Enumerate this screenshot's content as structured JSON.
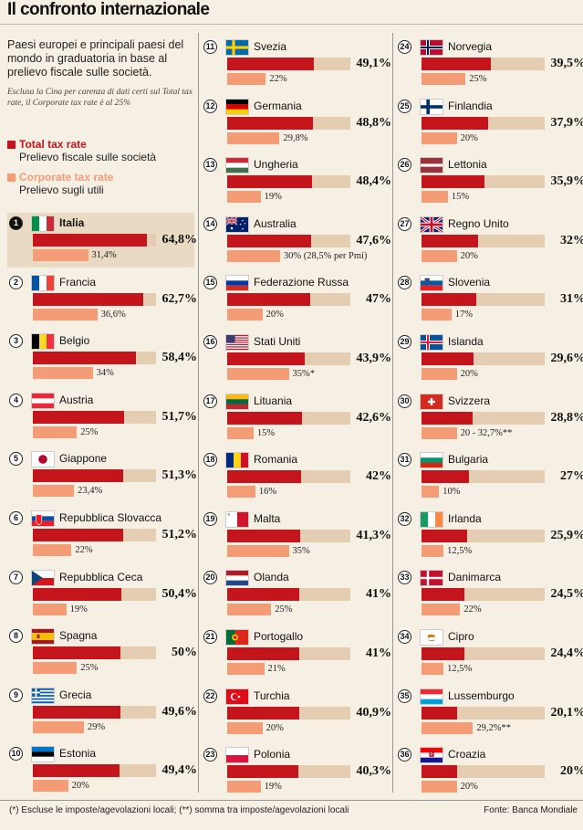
{
  "title": "Il confronto internazionale",
  "intro": "Paesi europei e principali paesi del mondo in graduatoria in base al prelievo fiscale sulle società.",
  "note": "Esclusa la Cina per carenza di dati certi sul Total tax rate, il Corporate tax rate è al 25%",
  "legend": {
    "total_label": "Total tax rate",
    "total_desc": "Prelievo fiscale sulle società",
    "corporate_label": "Corporate tax rate",
    "corporate_desc": "Prelievo sugli utili"
  },
  "colors": {
    "total": "#c4151c",
    "corporate": "#f39c76",
    "track": "#e4cdb0",
    "background": "#f6efe3"
  },
  "footer": {
    "footnote": "(*) Escluse le imposte/agevolazioni locali; (**) somma tra imposte/agevolazioni locali",
    "source": "Fonte: Banca Mondiale"
  },
  "chart_data": {
    "type": "bar",
    "title": "Il confronto internazionale",
    "series": [
      {
        "name": "Total tax rate",
        "unit": "%"
      },
      {
        "name": "Corporate tax rate",
        "unit": "%"
      }
    ],
    "xlim": [
      0,
      70
    ],
    "rows": [
      {
        "rank": "1",
        "country": "Italia",
        "flag": "IT",
        "total": 64.8,
        "total_label": "64,8%",
        "corporate": 31.4,
        "corporate_label": "31,4%"
      },
      {
        "rank": "2",
        "country": "Francia",
        "flag": "FR",
        "total": 62.7,
        "total_label": "62,7%",
        "corporate": 36.6,
        "corporate_label": "36,6%"
      },
      {
        "rank": "3",
        "country": "Belgio",
        "flag": "BE",
        "total": 58.4,
        "total_label": "58,4%",
        "corporate": 34,
        "corporate_label": "34%"
      },
      {
        "rank": "4",
        "country": "Austria",
        "flag": "AT",
        "total": 51.7,
        "total_label": "51,7%",
        "corporate": 25,
        "corporate_label": "25%"
      },
      {
        "rank": "5",
        "country": "Giappone",
        "flag": "JP",
        "total": 51.3,
        "total_label": "51,3%",
        "corporate": 23.4,
        "corporate_label": "23,4%"
      },
      {
        "rank": "6",
        "country": "Repubblica Slovacca",
        "flag": "SK",
        "total": 51.2,
        "total_label": "51,2%",
        "corporate": 22,
        "corporate_label": "22%"
      },
      {
        "rank": "7",
        "country": "Repubblica Ceca",
        "flag": "CZ",
        "total": 50.4,
        "total_label": "50,4%",
        "corporate": 19,
        "corporate_label": "19%"
      },
      {
        "rank": "8",
        "country": "Spagna",
        "flag": "ES",
        "total": 50,
        "total_label": "50%",
        "corporate": 25,
        "corporate_label": "25%"
      },
      {
        "rank": "9",
        "country": "Grecia",
        "flag": "GR",
        "total": 49.6,
        "total_label": "49,6%",
        "corporate": 29,
        "corporate_label": "29%"
      },
      {
        "rank": "10",
        "country": "Estonia",
        "flag": "EE",
        "total": 49.4,
        "total_label": "49,4%",
        "corporate": 20,
        "corporate_label": "20%"
      },
      {
        "rank": "11",
        "country": "Svezia",
        "flag": "SE",
        "total": 49.1,
        "total_label": "49,1%",
        "corporate": 22,
        "corporate_label": "22%"
      },
      {
        "rank": "12",
        "country": "Germania",
        "flag": "DE",
        "total": 48.8,
        "total_label": "48,8%",
        "corporate": 29.8,
        "corporate_label": "29,8%"
      },
      {
        "rank": "13",
        "country": "Ungheria",
        "flag": "HU",
        "total": 48.4,
        "total_label": "48,4%",
        "corporate": 19,
        "corporate_label": "19%"
      },
      {
        "rank": "14",
        "country": "Australia",
        "flag": "AU",
        "total": 47.6,
        "total_label": "47,6%",
        "corporate": 30,
        "corporate_label": "30% (28,5% per Pmi)"
      },
      {
        "rank": "15",
        "country": "Federazione Russa",
        "flag": "RU",
        "total": 47,
        "total_label": "47%",
        "corporate": 20,
        "corporate_label": "20%"
      },
      {
        "rank": "16",
        "country": "Stati Uniti",
        "flag": "US",
        "total": 43.9,
        "total_label": "43,9%",
        "corporate": 35,
        "corporate_label": "35%*"
      },
      {
        "rank": "17",
        "country": "Lituania",
        "flag": "LT",
        "total": 42.6,
        "total_label": "42,6%",
        "corporate": 15,
        "corporate_label": "15%"
      },
      {
        "rank": "18",
        "country": "Romania",
        "flag": "RO",
        "total": 42,
        "total_label": "42%",
        "corporate": 16,
        "corporate_label": "16%"
      },
      {
        "rank": "19",
        "country": "Malta",
        "flag": "MT",
        "total": 41.3,
        "total_label": "41,3%",
        "corporate": 35,
        "corporate_label": "35%"
      },
      {
        "rank": "20",
        "country": "Olanda",
        "flag": "NL",
        "total": 41,
        "total_label": "41%",
        "corporate": 25,
        "corporate_label": "25%"
      },
      {
        "rank": "21",
        "country": "Portogallo",
        "flag": "PT",
        "total": 41,
        "total_label": "41%",
        "corporate": 21,
        "corporate_label": "21%"
      },
      {
        "rank": "22",
        "country": "Turchia",
        "flag": "TR",
        "total": 40.9,
        "total_label": "40,9%",
        "corporate": 20,
        "corporate_label": "20%"
      },
      {
        "rank": "23",
        "country": "Polonia",
        "flag": "PL",
        "total": 40.3,
        "total_label": "40,3%",
        "corporate": 19,
        "corporate_label": "19%"
      },
      {
        "rank": "24",
        "country": "Norvegia",
        "flag": "NO",
        "total": 39.5,
        "total_label": "39,5%",
        "corporate": 25,
        "corporate_label": "25%"
      },
      {
        "rank": "25",
        "country": "Finlandia",
        "flag": "FI",
        "total": 37.9,
        "total_label": "37,9%",
        "corporate": 20,
        "corporate_label": "20%"
      },
      {
        "rank": "26",
        "country": "Lettonia",
        "flag": "LV",
        "total": 35.9,
        "total_label": "35,9%",
        "corporate": 15,
        "corporate_label": "15%"
      },
      {
        "rank": "27",
        "country": "Regno Unito",
        "flag": "GB",
        "total": 32,
        "total_label": "32%",
        "corporate": 20,
        "corporate_label": "20%"
      },
      {
        "rank": "28",
        "country": "Slovenia",
        "flag": "SI",
        "total": 31,
        "total_label": "31%",
        "corporate": 17,
        "corporate_label": "17%"
      },
      {
        "rank": "29",
        "country": "Islanda",
        "flag": "IS",
        "total": 29.6,
        "total_label": "29,6%",
        "corporate": 20,
        "corporate_label": "20%"
      },
      {
        "rank": "30",
        "country": "Svizzera",
        "flag": "CH",
        "total": 28.8,
        "total_label": "28,8%",
        "corporate": 20,
        "corporate_label": "20 - 32,7%**"
      },
      {
        "rank": "31",
        "country": "Bulgaria",
        "flag": "BG",
        "total": 27,
        "total_label": "27%",
        "corporate": 10,
        "corporate_label": "10%"
      },
      {
        "rank": "32",
        "country": "Irlanda",
        "flag": "IE",
        "total": 25.9,
        "total_label": "25,9%",
        "corporate": 12.5,
        "corporate_label": "12,5%"
      },
      {
        "rank": "33",
        "country": "Danimarca",
        "flag": "DK",
        "total": 24.5,
        "total_label": "24,5%",
        "corporate": 22,
        "corporate_label": "22%"
      },
      {
        "rank": "34",
        "country": "Cipro",
        "flag": "CY",
        "total": 24.4,
        "total_label": "24,4%",
        "corporate": 12.5,
        "corporate_label": "12,5%"
      },
      {
        "rank": "35",
        "country": "Lussemburgo",
        "flag": "LU",
        "total": 20.1,
        "total_label": "20,1%",
        "corporate": 29.2,
        "corporate_label": "29,2%**"
      },
      {
        "rank": "36",
        "country": "Croazia",
        "flag": "HR",
        "total": 20,
        "total_label": "20%",
        "corporate": 20,
        "corporate_label": "20%"
      }
    ]
  }
}
